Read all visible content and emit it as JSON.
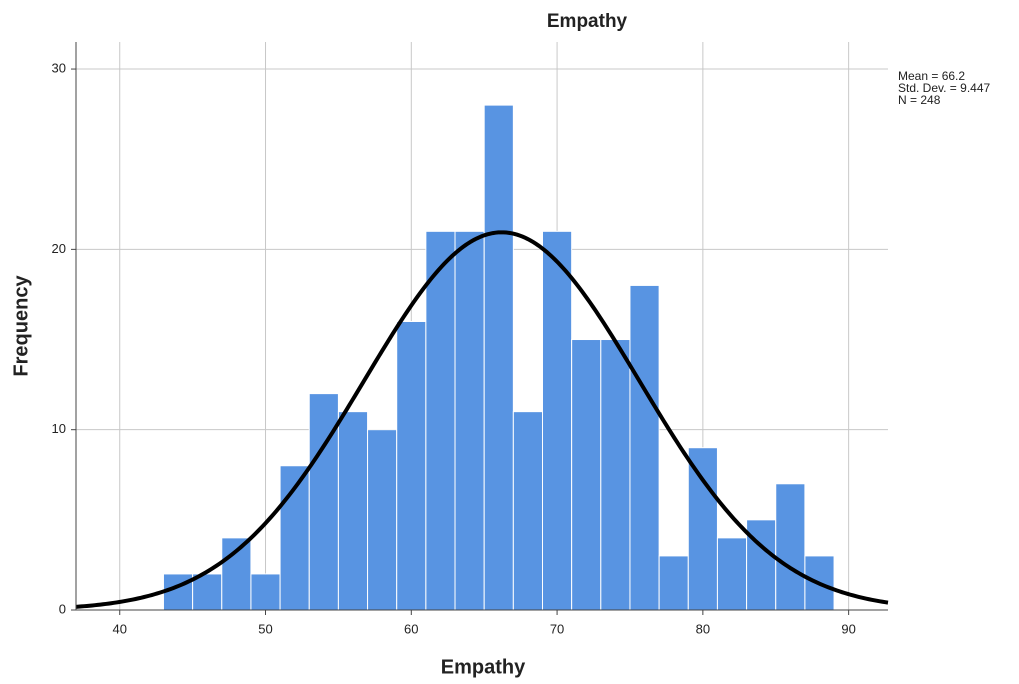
{
  "chart_data": {
    "type": "histogram",
    "title": "Empathy",
    "xlabel": "Empathy",
    "ylabel": "Frequency",
    "bins": [
      43,
      45,
      47,
      49,
      51,
      53,
      55,
      57,
      59,
      61,
      63,
      65,
      67,
      69,
      71,
      73,
      75,
      77,
      79,
      81,
      83,
      85,
      87,
      89
    ],
    "values": [
      2,
      2,
      4,
      2,
      8,
      12,
      11,
      10,
      16,
      21,
      21,
      28,
      11,
      21,
      15,
      15,
      18,
      3,
      9,
      4,
      5,
      7,
      3
    ],
    "color": "#5894e2",
    "xlim": [
      37,
      92.7
    ],
    "xticks": [
      40,
      50,
      60,
      70,
      80,
      90
    ],
    "ylim": [
      0,
      31.5
    ],
    "yticks": [
      0,
      10,
      20,
      30
    ],
    "grid": true,
    "curve": {
      "mean": 66.2,
      "sd": 9.447,
      "n": 248,
      "color": "#000000"
    },
    "annotations": [
      "Mean = 66.2",
      "Std. Dev. = 9.447",
      "N = 248"
    ]
  }
}
